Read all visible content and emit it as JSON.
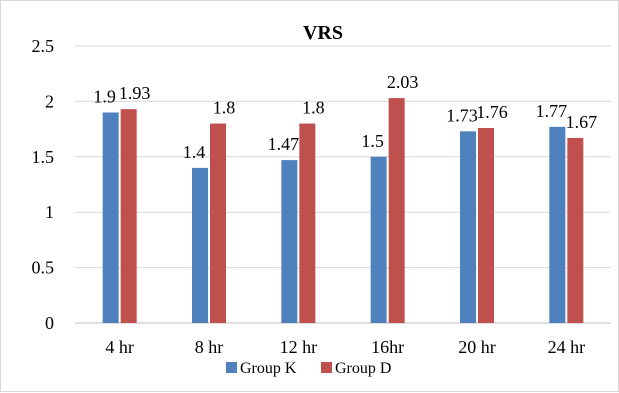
{
  "chart_data": {
    "type": "bar",
    "title": "VRS",
    "categories": [
      "4 hr",
      "8 hr",
      "12 hr",
      "16hr",
      "20 hr",
      "24 hr"
    ],
    "series": [
      {
        "name": "Group K",
        "color": "#4f81bd",
        "values": [
          1.9,
          1.4,
          1.47,
          1.5,
          1.73,
          1.77
        ],
        "labels": [
          "1.9",
          "1.4",
          "1.47",
          "1.5",
          "1.73",
          "1.77"
        ]
      },
      {
        "name": "Group D",
        "color": "#c0504d",
        "values": [
          1.93,
          1.8,
          1.8,
          2.03,
          1.76,
          1.67
        ],
        "labels": [
          "1.93",
          "1.8",
          "1.8",
          "2.03",
          "1.76",
          "1.67"
        ]
      }
    ],
    "ylim": [
      0,
      2.5
    ],
    "yticks": [
      "0",
      "0.5",
      "1",
      "1.5",
      "2",
      "2.5"
    ],
    "grid": true,
    "legend_position": "bottom"
  }
}
